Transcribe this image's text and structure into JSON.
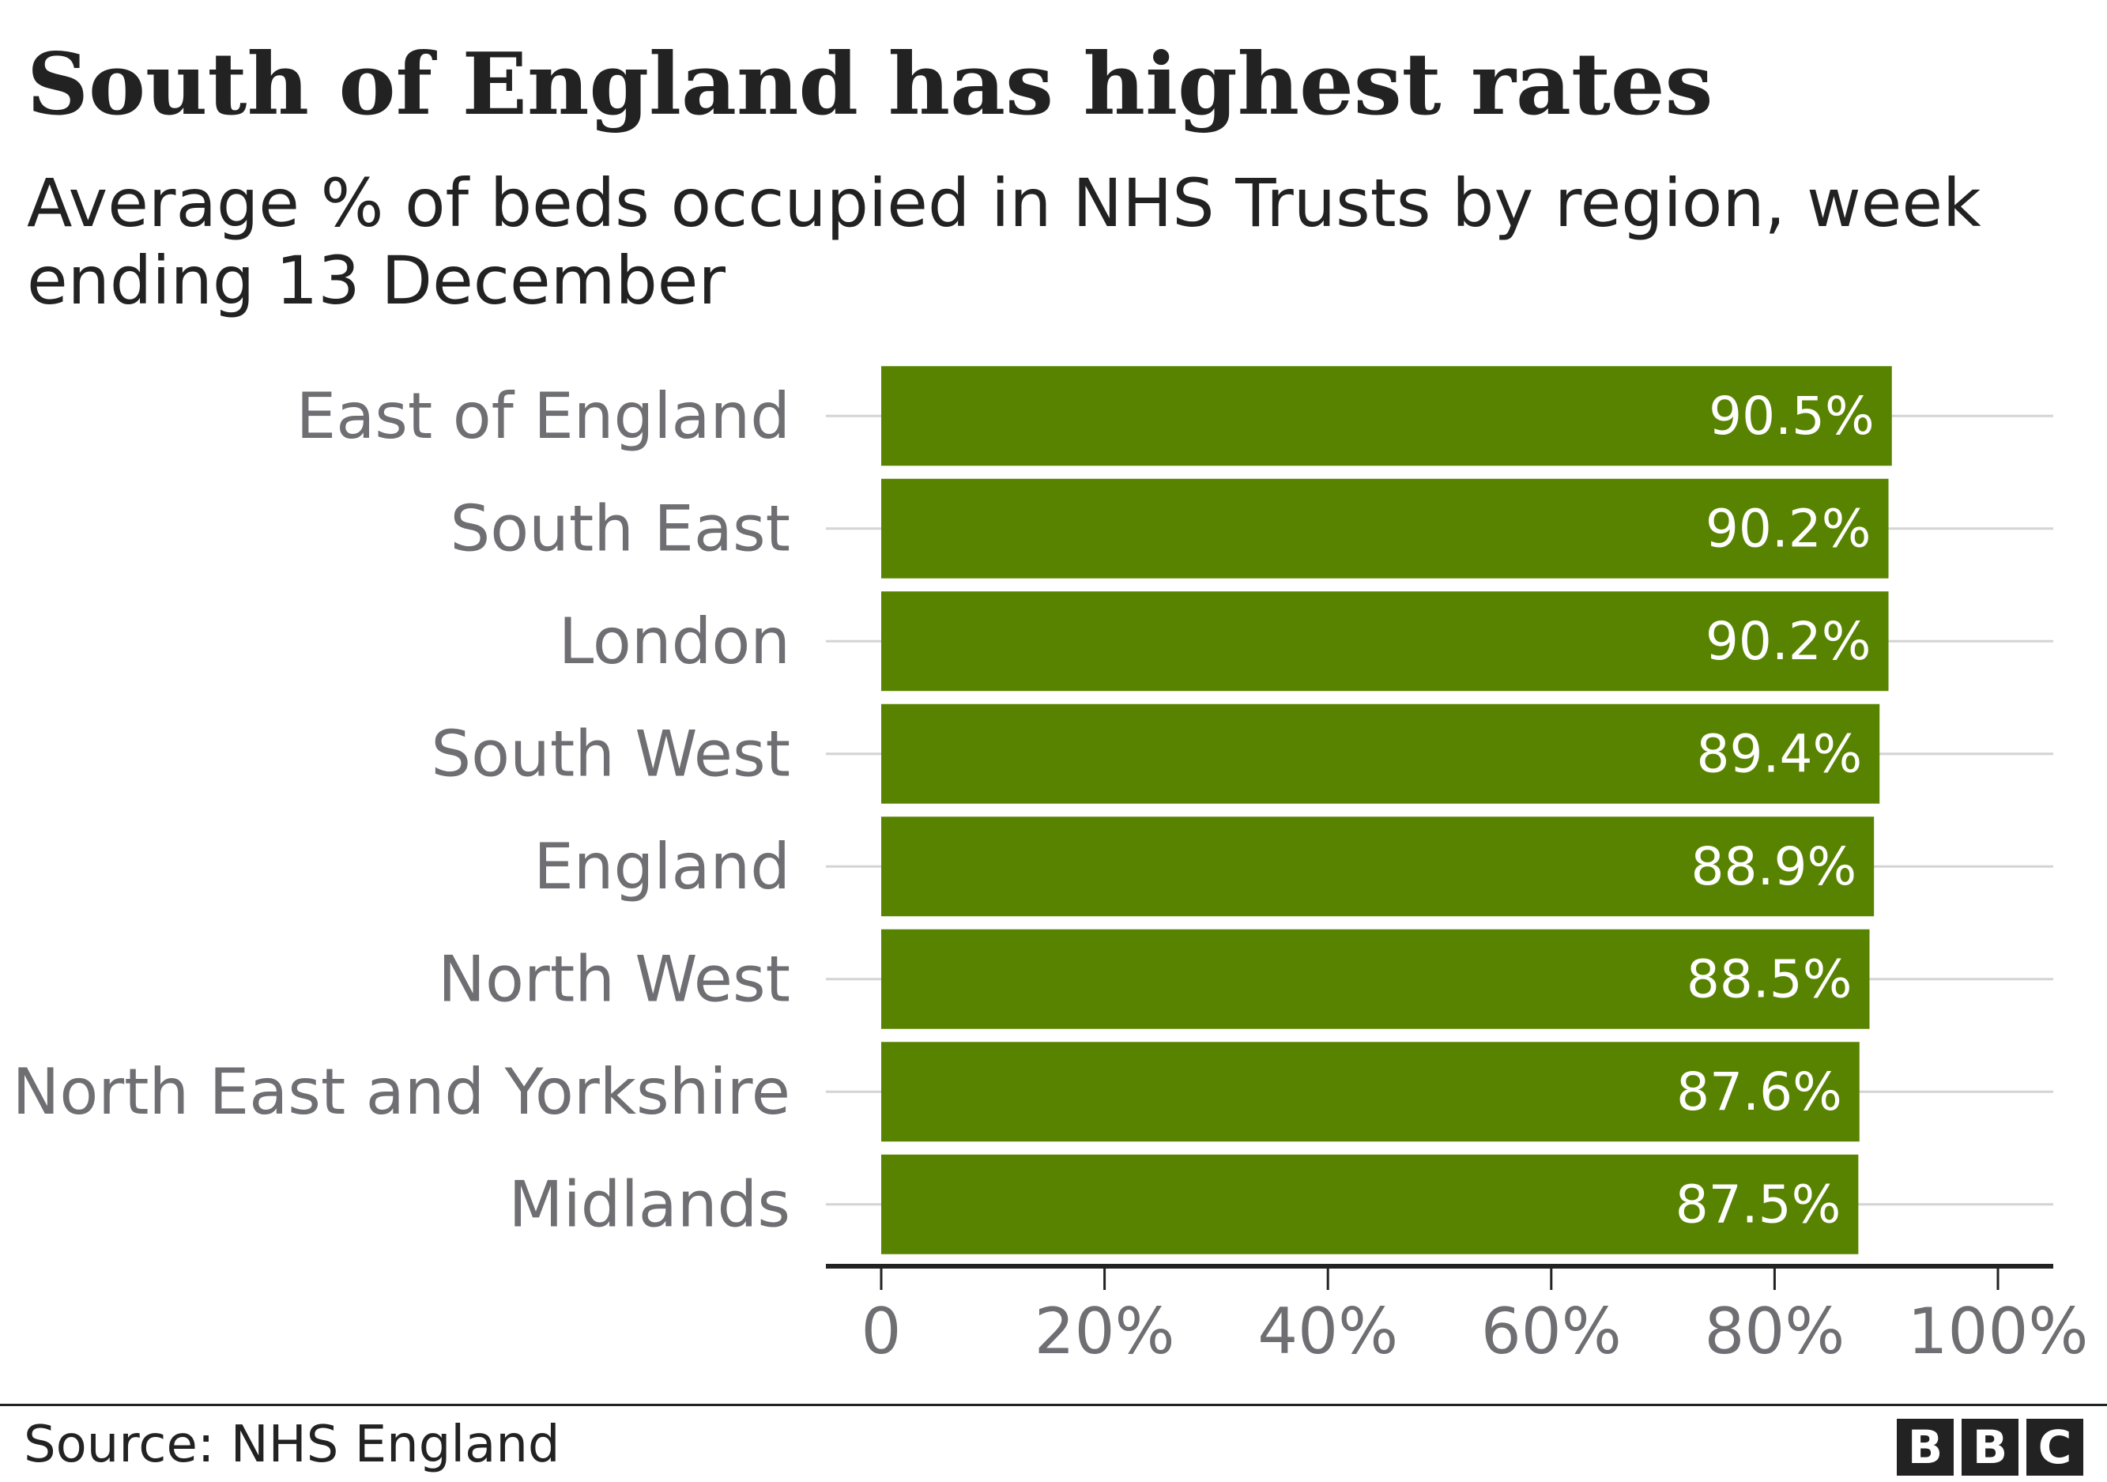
{
  "header": {
    "title": "South of England has highest rates",
    "subtitle": "Average % of beds occupied in NHS Trusts by region, week ending 13 December"
  },
  "footer": {
    "source": "Source: NHS England",
    "logo_letters": [
      "B",
      "B",
      "C"
    ]
  },
  "colors": {
    "bar": "#588300",
    "bar_label": "#ffffff",
    "category_label": "#6e6e73",
    "gridline": "#d4d4d4",
    "axis": "#222222"
  },
  "chart_data": {
    "type": "bar",
    "orientation": "horizontal",
    "title": "South of England has highest rates",
    "subtitle": "Average % of beds occupied in NHS Trusts by region, week ending 13 December",
    "categories": [
      "East of England",
      "South East",
      "London",
      "South West",
      "England",
      "North West",
      "North East and Yorkshire",
      "Midlands"
    ],
    "values": [
      90.5,
      90.2,
      90.2,
      89.4,
      88.9,
      88.5,
      87.6,
      87.5
    ],
    "value_labels": [
      "90.5%",
      "90.2%",
      "90.2%",
      "89.4%",
      "88.9%",
      "88.5%",
      "87.6%",
      "87.5%"
    ],
    "xlim": [
      0,
      100
    ],
    "x_ticks": [
      0,
      20,
      40,
      60,
      80,
      100
    ],
    "x_tick_labels": [
      "0",
      "20%",
      "40%",
      "60%",
      "80%",
      "100%"
    ],
    "xlabel": "",
    "ylabel": "",
    "grid": true,
    "legend": "none"
  }
}
